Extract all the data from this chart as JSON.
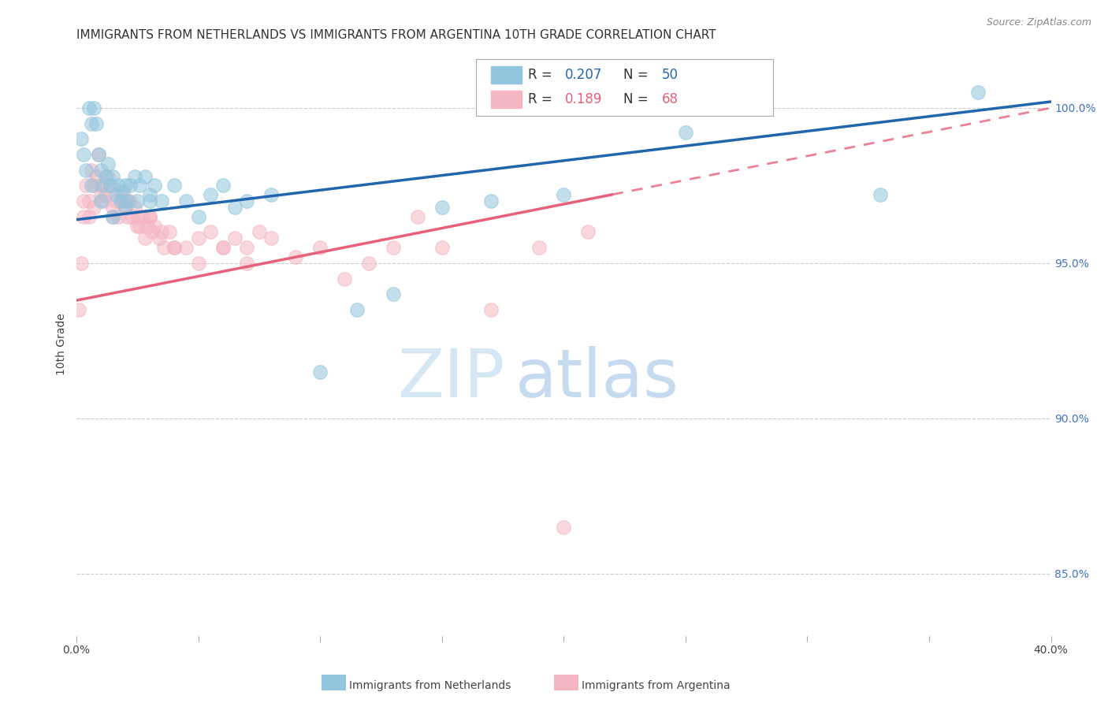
{
  "title": "IMMIGRANTS FROM NETHERLANDS VS IMMIGRANTS FROM ARGENTINA 10TH GRADE CORRELATION CHART",
  "source": "Source: ZipAtlas.com",
  "ylabel": "10th Grade",
  "y_ticks": [
    85.0,
    90.0,
    95.0,
    100.0
  ],
  "y_tick_labels": [
    "85.0%",
    "90.0%",
    "95.0%",
    "100.0%"
  ],
  "xmin": 0.0,
  "xmax": 40.0,
  "ymin": 83.0,
  "ymax": 101.8,
  "netherlands_color": "#92c5de",
  "argentina_color": "#f4b6c2",
  "netherlands_line_color": "#2166ac",
  "argentina_line_color": "#e8607a",
  "netherlands_R": 0.207,
  "netherlands_N": 50,
  "argentina_R": 0.189,
  "argentina_N": 68,
  "legend_label_netherlands": "Immigrants from Netherlands",
  "legend_label_argentina": "Immigrants from Argentina",
  "nl_trend_x0": 0.0,
  "nl_trend_y0": 96.4,
  "nl_trend_x1": 40.0,
  "nl_trend_y1": 100.2,
  "ar_trend_x0": 0.0,
  "ar_trend_y0": 93.8,
  "ar_trend_x1": 40.0,
  "ar_trend_y1": 100.0,
  "netherlands_scatter_x": [
    0.2,
    0.3,
    0.5,
    0.6,
    0.7,
    0.8,
    0.9,
    1.0,
    1.1,
    1.2,
    1.3,
    1.4,
    1.5,
    1.6,
    1.7,
    1.8,
    1.9,
    2.0,
    2.1,
    2.2,
    2.4,
    2.5,
    2.6,
    2.8,
    3.0,
    3.2,
    3.5,
    4.0,
    4.5,
    5.0,
    5.5,
    6.0,
    6.5,
    7.0,
    8.0,
    10.0,
    11.5,
    13.0,
    15.0,
    17.0,
    20.0,
    25.0,
    33.0,
    37.0,
    0.4,
    0.6,
    1.0,
    1.5,
    2.0,
    3.0
  ],
  "netherlands_scatter_y": [
    99.0,
    98.5,
    100.0,
    99.5,
    100.0,
    99.5,
    98.5,
    98.0,
    97.5,
    97.8,
    98.2,
    97.5,
    97.8,
    97.2,
    97.5,
    97.0,
    97.3,
    97.5,
    97.0,
    97.5,
    97.8,
    97.0,
    97.5,
    97.8,
    97.2,
    97.5,
    97.0,
    97.5,
    97.0,
    96.5,
    97.2,
    97.5,
    96.8,
    97.0,
    97.2,
    91.5,
    93.5,
    94.0,
    96.8,
    97.0,
    97.2,
    99.2,
    97.2,
    100.5,
    98.0,
    97.5,
    97.0,
    96.5,
    96.8,
    97.0
  ],
  "argentina_scatter_x": [
    0.1,
    0.2,
    0.3,
    0.4,
    0.5,
    0.6,
    0.7,
    0.8,
    0.9,
    1.0,
    1.1,
    1.2,
    1.3,
    1.4,
    1.5,
    1.6,
    1.7,
    1.8,
    1.9,
    2.0,
    2.1,
    2.2,
    2.3,
    2.4,
    2.5,
    2.6,
    2.7,
    2.8,
    2.9,
    3.0,
    3.1,
    3.2,
    3.4,
    3.6,
    3.8,
    4.0,
    4.5,
    5.0,
    5.5,
    6.0,
    6.5,
    7.0,
    7.5,
    8.0,
    9.0,
    10.0,
    11.0,
    12.0,
    13.0,
    14.0,
    15.0,
    17.0,
    19.0,
    21.0,
    0.3,
    0.5,
    0.7,
    1.0,
    1.5,
    2.0,
    2.5,
    3.0,
    3.5,
    4.0,
    5.0,
    6.0,
    7.0,
    20.0
  ],
  "argentina_scatter_y": [
    93.5,
    95.0,
    96.5,
    97.5,
    97.0,
    98.0,
    97.5,
    97.8,
    98.5,
    97.5,
    97.0,
    97.2,
    97.8,
    97.5,
    96.8,
    97.0,
    96.5,
    97.2,
    97.0,
    96.8,
    96.5,
    97.0,
    96.5,
    96.8,
    96.5,
    96.2,
    96.5,
    95.8,
    96.2,
    96.5,
    96.0,
    96.2,
    95.8,
    95.5,
    96.0,
    95.5,
    95.5,
    95.8,
    96.0,
    95.5,
    95.8,
    95.5,
    96.0,
    95.8,
    95.2,
    95.5,
    94.5,
    95.0,
    95.5,
    96.5,
    95.5,
    93.5,
    95.5,
    96.0,
    97.0,
    96.5,
    96.8,
    97.2,
    96.5,
    97.0,
    96.2,
    96.5,
    96.0,
    95.5,
    95.0,
    95.5,
    95.0,
    86.5
  ],
  "watermark_zip": "ZIP",
  "watermark_atlas": "atlas",
  "background_color": "#ffffff",
  "grid_color": "#cccccc",
  "title_fontsize": 11,
  "axis_label_fontsize": 10,
  "tick_fontsize": 10
}
